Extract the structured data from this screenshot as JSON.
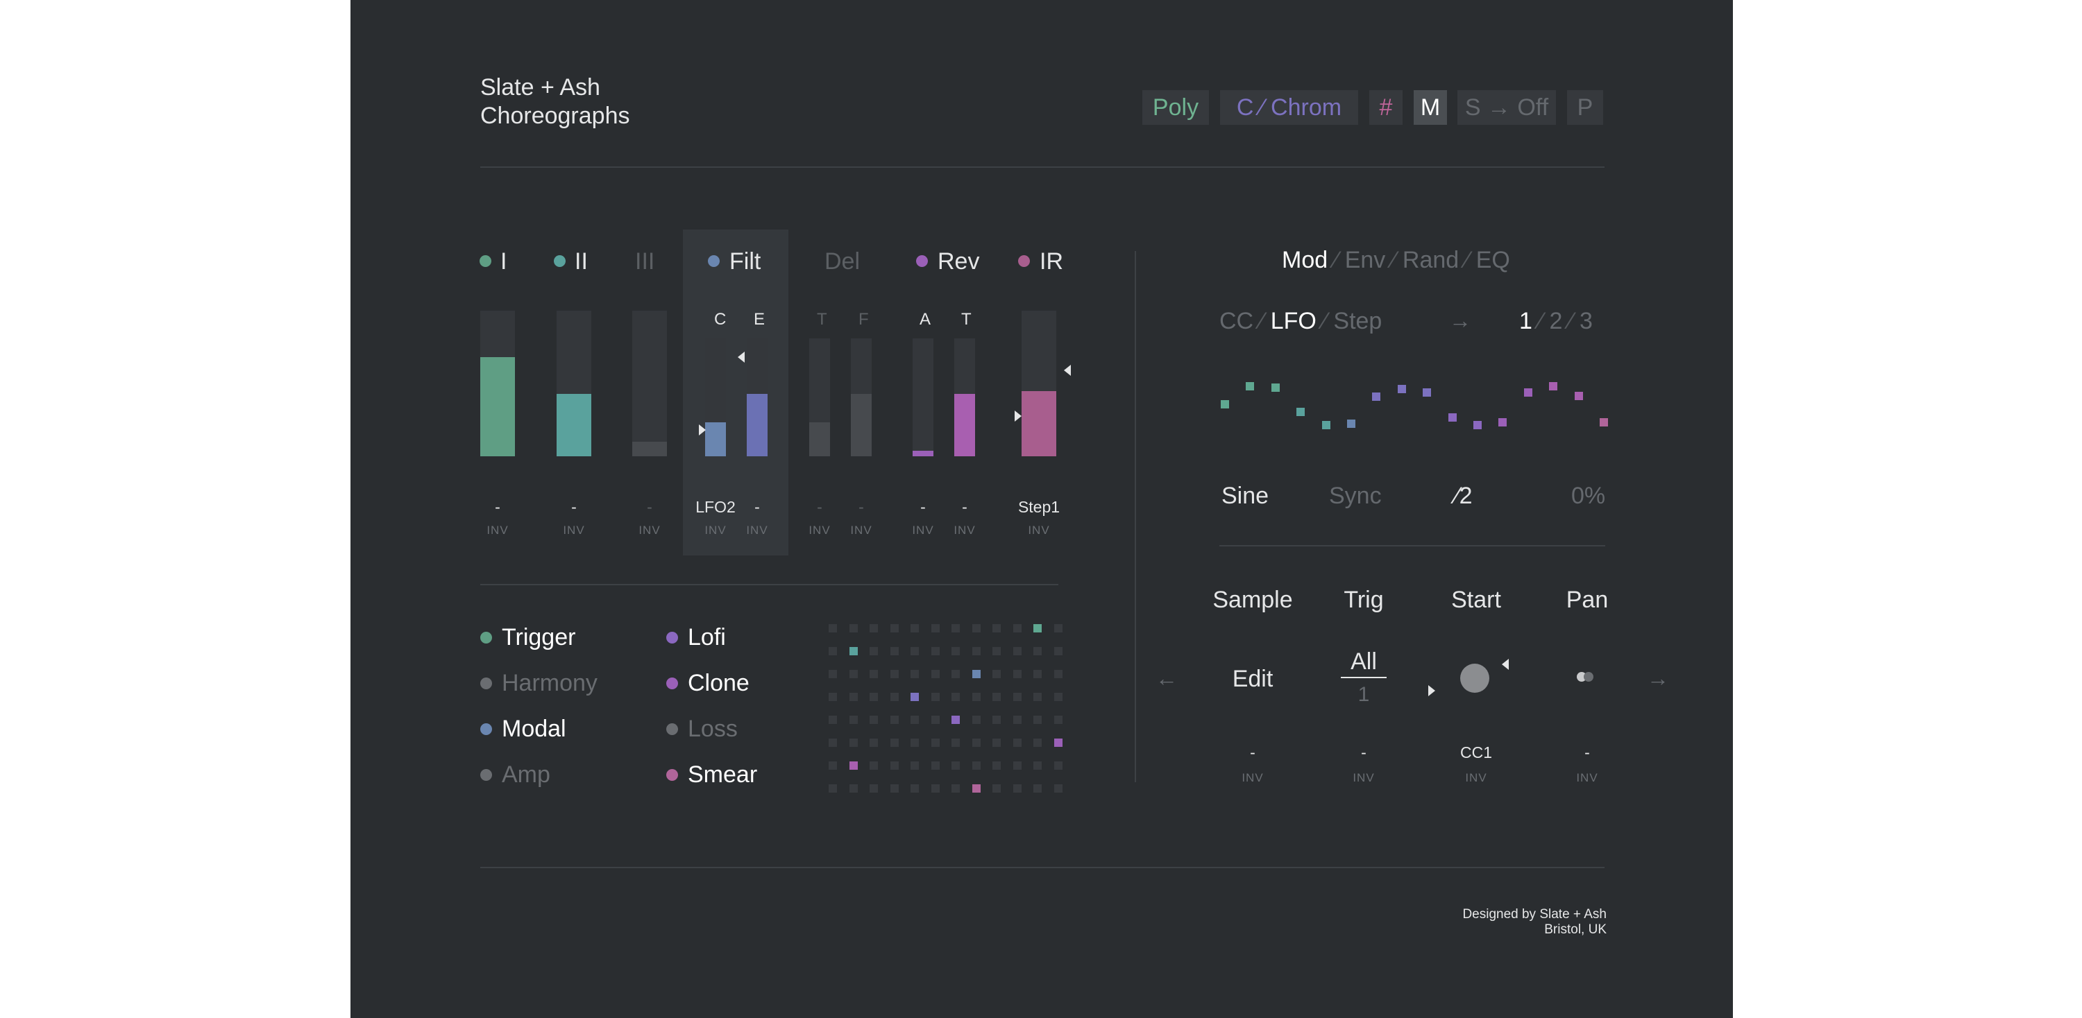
{
  "brand": {
    "line1": "Slate + Ash",
    "line2": "Choreographs"
  },
  "toolbar": {
    "poly": "Poly",
    "chrom": "C ⁄ Chrom",
    "sharp": "#",
    "m": "M",
    "s_off": "S → Off",
    "p": "P",
    "colors": {
      "poly": "#6fb391",
      "chrom": "#7c72c0",
      "sharp": "#c0659a"
    }
  },
  "channels": [
    {
      "label": "I",
      "color": "#5f9e84",
      "active": true,
      "level": 0.68,
      "values": [
        "-"
      ],
      "inv": [
        "INV"
      ]
    },
    {
      "label": "II",
      "color": "#5aa29d",
      "active": true,
      "level": 0.43,
      "values": [
        "-"
      ],
      "inv": [
        "INV"
      ]
    },
    {
      "label": "III",
      "color": "#4a4d51",
      "active": false,
      "level": 0.1,
      "values": [
        "-"
      ],
      "inv": [
        "INV"
      ]
    },
    {
      "label": "Filt",
      "color": "#6a86b0",
      "active": true,
      "sub": [
        "C",
        "E"
      ],
      "levels": [
        0.29,
        0.53
      ],
      "values": [
        "LFO2",
        "-"
      ],
      "inv": [
        "INV",
        "INV"
      ]
    },
    {
      "label": "Del",
      "color": "#4a4d51",
      "active": false,
      "sub": [
        "T",
        "F"
      ],
      "levels": [
        0.29,
        0.53
      ],
      "values": [
        "-",
        "-"
      ],
      "inv": [
        "INV",
        "INV"
      ]
    },
    {
      "label": "Rev",
      "color": "#9b60b8",
      "active": true,
      "sub": [
        "A",
        "T"
      ],
      "levels": [
        0.05,
        0.53
      ],
      "values": [
        "-",
        "-"
      ],
      "inv": [
        "INV",
        "INV"
      ]
    },
    {
      "label": "IR",
      "color": "#a85e8e",
      "active": true,
      "level": 0.45,
      "values": [
        "Step1"
      ],
      "inv": [
        "INV"
      ]
    }
  ],
  "modes": [
    {
      "label": "Trigger",
      "color": "#5f9e84",
      "active": true
    },
    {
      "label": "Harmony",
      "color": "#6a6d71",
      "active": false
    },
    {
      "label": "Modal",
      "color": "#6a86b0",
      "active": true
    },
    {
      "label": "Amp",
      "color": "#6a6d71",
      "active": false
    },
    {
      "label": "Lofi",
      "color": "#8b68c0",
      "active": true
    },
    {
      "label": "Clone",
      "color": "#9b60b8",
      "active": true
    },
    {
      "label": "Loss",
      "color": "#6a6d71",
      "active": false
    },
    {
      "label": "Smear",
      "color": "#b0659a",
      "active": true
    }
  ],
  "grid": {
    "cells": [
      {
        "row": 0,
        "col": 10,
        "color": "#5fa891"
      },
      {
        "row": 1,
        "col": 1,
        "color": "#5aa29d"
      },
      {
        "row": 2,
        "col": 7,
        "color": "#6a86b0"
      },
      {
        "row": 3,
        "col": 4,
        "color": "#7c72c0"
      },
      {
        "row": 4,
        "col": 6,
        "color": "#8b68c0"
      },
      {
        "row": 5,
        "col": 11,
        "color": "#9b60b8"
      },
      {
        "row": 6,
        "col": 1,
        "color": "#a85fb0"
      },
      {
        "row": 7,
        "col": 7,
        "color": "#b0659a"
      }
    ]
  },
  "mod": {
    "tabs": [
      "Mod",
      "Env",
      "Rand",
      "EQ"
    ],
    "active_tab": "Mod",
    "sources": [
      "CC",
      "LFO",
      "Step"
    ],
    "active_source": "LFO",
    "arrow": "→",
    "slots": [
      "1",
      "2",
      "3"
    ],
    "active_slot": "1",
    "wave_values": [
      0.55,
      0.9,
      0.88,
      0.4,
      0.15,
      0.18,
      0.7,
      0.85,
      0.78,
      0.3,
      0.15,
      0.2,
      0.78,
      0.9,
      0.72,
      0.2
    ],
    "wave_colors": [
      "#5fa891",
      "#5fa891",
      "#5fa891",
      "#5aa29d",
      "#5aa29d",
      "#6a86b0",
      "#7c72c0",
      "#7c72c0",
      "#7c72c0",
      "#8b68c0",
      "#8b68c0",
      "#9b60b8",
      "#9b60b8",
      "#a85fb0",
      "#a85fb0",
      "#b0659a"
    ],
    "params": [
      "Sine",
      "Sync",
      "⁄2",
      "0%"
    ]
  },
  "sample": {
    "headers": [
      "Sample",
      "Trig",
      "Start",
      "Pan"
    ],
    "edit": "Edit",
    "trig_top": "All",
    "trig_bottom": "1",
    "values": [
      "-",
      "-",
      "CC1",
      "-"
    ],
    "inv": [
      "INV",
      "INV",
      "INV",
      "INV"
    ],
    "nav_left": "←",
    "nav_right": "→"
  },
  "footer": {
    "line1": "Designed by Slate + Ash",
    "line2": "Bristol, UK"
  }
}
